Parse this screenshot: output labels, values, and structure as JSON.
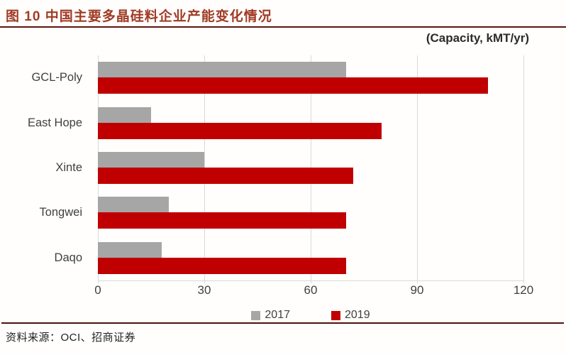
{
  "header": {
    "figure_title": "图 10  中国主要多晶硅料企业产能变化情况"
  },
  "chart_data": {
    "type": "bar",
    "orientation": "horizontal",
    "title": "(Capacity, kMT/yr)",
    "categories": [
      "GCL-Poly",
      "East Hope",
      "Xinte",
      "Tongwei",
      "Daqo"
    ],
    "series": [
      {
        "name": "2017",
        "color": "#a6a6a6",
        "values": [
          70,
          15,
          30,
          20,
          18
        ]
      },
      {
        "name": "2019",
        "color": "#c00000",
        "values": [
          110,
          80,
          72,
          70,
          70
        ]
      }
    ],
    "x_ticks": [
      0,
      30,
      60,
      90,
      120
    ],
    "xlim": [
      0,
      120
    ],
    "grid": "vertical-gridlines-on",
    "legend_position": "bottom-center"
  },
  "footer": {
    "source": "资料来源：OCI、招商证券"
  },
  "colors": {
    "title_red": "#a03b25",
    "rule_dark_red": "#5e150e",
    "bar_gray_2017": "#a6a6a6",
    "bar_red_2019": "#c00000",
    "gridline_gray": "#d9d9d9",
    "axis_text": "#404040"
  }
}
